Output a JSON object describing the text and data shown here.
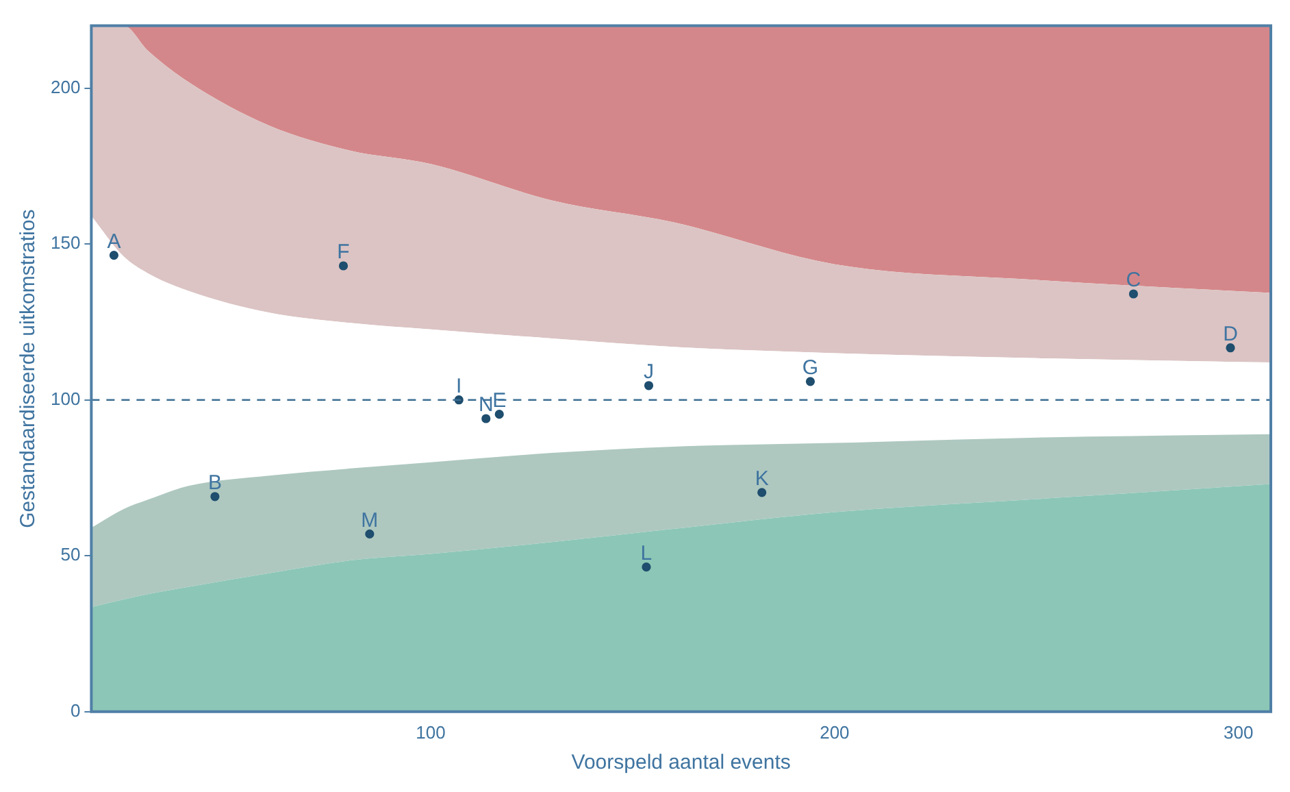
{
  "chart_data": {
    "type": "scatter",
    "stacked": true,
    "xlabel": "Voorspeld aantal events",
    "ylabel": "Gestandaardiseerde uitkomstratios",
    "xlim": [
      16,
      308
    ],
    "ylim": [
      0,
      220
    ],
    "xticks": [
      100,
      200,
      300
    ],
    "yticks": [
      0,
      50,
      100,
      150,
      200
    ],
    "grid": false,
    "legend": false,
    "ref_lines": [
      {
        "axis": "y",
        "value": 100,
        "color": "#3d6f93",
        "line_style": "dashed"
      }
    ],
    "series": [
      {
        "type": "area",
        "color": "#8cc6b6",
        "x": [
          16,
          24,
          30,
          40,
          60,
          80,
          100,
          130,
          160,
          200,
          250,
          308
        ],
        "values": [
          33.5,
          36,
          37.7,
          40,
          44.4,
          48.5,
          50.6,
          54.4,
          58.6,
          64,
          68.2,
          73
        ]
      },
      {
        "type": "area",
        "color": "#aec8c0",
        "x": [
          16,
          24,
          30,
          40,
          60,
          80,
          100,
          130,
          160,
          200,
          250,
          308
        ],
        "values": [
          25.5,
          29,
          30.3,
          32.4,
          31.3,
          29.5,
          29.4,
          28.6,
          26.4,
          22.2,
          19.7,
          16
        ]
      },
      {
        "type": "area",
        "color": "#ffffff",
        "x": [
          16,
          24,
          30,
          40,
          60,
          80,
          100,
          130,
          160,
          200,
          250,
          308
        ],
        "values": [
          100,
          81,
          72.6,
          62.6,
          52.3,
          46.7,
          42.6,
          36.7,
          32,
          28.8,
          25.5,
          23
        ]
      },
      {
        "type": "area",
        "color": "#dcc4c4",
        "x": [
          16,
          24,
          30,
          40,
          60,
          80,
          100,
          130,
          160,
          200,
          250,
          308
        ],
        "values": [
          61,
          74,
          71.4,
          67,
          60,
          55.3,
          53.1,
          44.3,
          40,
          28.5,
          25.1,
          22.3
        ]
      },
      {
        "type": "area",
        "color": "#d4878a",
        "x": [
          16,
          24,
          30,
          40,
          60,
          80,
          100,
          130,
          160,
          200,
          250,
          308
        ],
        "values": [
          0,
          0,
          8,
          18,
          32,
          40,
          44.3,
          56,
          63,
          76.5,
          81.5,
          85.7
        ]
      },
      {
        "type": "scatter",
        "color": "#1f4e6e",
        "marker": "circle",
        "x": [
          21.6,
          46.6,
          274,
          298,
          117,
          78.4,
          194,
          107,
          154,
          182,
          153.4,
          84.9,
          113.7
        ],
        "values": [
          146.4,
          69,
          134,
          116.7,
          95.4,
          143,
          105.9,
          100,
          104.6,
          70.3,
          46.4,
          57,
          94
        ],
        "value_labels": [
          "A",
          "B",
          "C",
          "D",
          "E",
          "F",
          "G",
          "I",
          "J",
          "K",
          "L",
          "M",
          "N"
        ]
      }
    ]
  }
}
